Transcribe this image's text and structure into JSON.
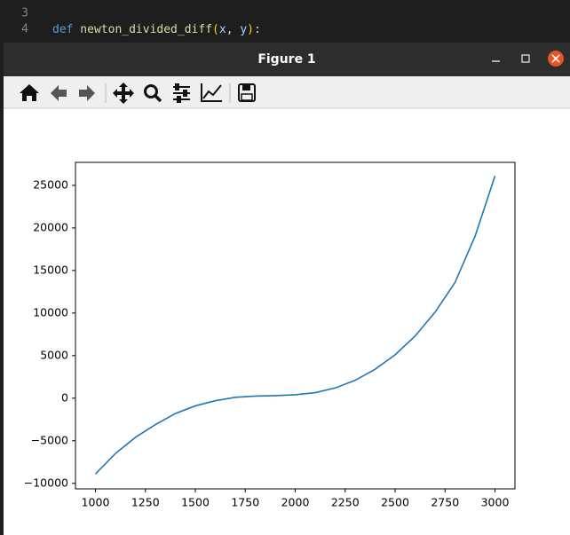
{
  "editor": {
    "lines": [
      {
        "number": "3",
        "tokens": []
      },
      {
        "number": "4",
        "tokens": [
          {
            "text": "def",
            "color": "#569cd6"
          },
          {
            "text": " newton_divided_diff",
            "color": "#dcdcaa"
          },
          {
            "text": "(",
            "color": "#ffd700"
          },
          {
            "text": "x",
            "color": "#9cdcfe"
          },
          {
            "text": ", ",
            "color": "#d4d4d4"
          },
          {
            "text": "y",
            "color": "#9cdcfe"
          },
          {
            "text": ")",
            "color": "#ffd700"
          },
          {
            "text": ":",
            "color": "#d4d4d4"
          }
        ]
      }
    ]
  },
  "window": {
    "title": "Figure 1"
  },
  "chart_data": {
    "type": "line",
    "x": [
      1000,
      1100,
      1200,
      1300,
      1400,
      1500,
      1600,
      1700,
      1800,
      1900,
      2000,
      2100,
      2200,
      2300,
      2400,
      2500,
      2600,
      2700,
      2800,
      2900,
      3000
    ],
    "series": [
      {
        "color": "#1f77b4",
        "values": [
          -8900,
          -6500,
          -4600,
          -3100,
          -1800,
          -900,
          -300,
          100,
          250,
          300,
          400,
          650,
          1200,
          2100,
          3400,
          5100,
          7300,
          10100,
          13600,
          19000,
          26100
        ]
      }
    ],
    "xlim": [
      900,
      3100
    ],
    "ylim": [
      -10650,
      27700
    ],
    "xticks": [
      1000,
      1250,
      1500,
      1750,
      2000,
      2250,
      2500,
      2750,
      3000
    ],
    "yticks": [
      {
        "value": -10000,
        "label": "−10000"
      },
      {
        "value": -5000,
        "label": "−5000"
      },
      0,
      5000,
      10000,
      15000,
      20000,
      25000
    ]
  }
}
